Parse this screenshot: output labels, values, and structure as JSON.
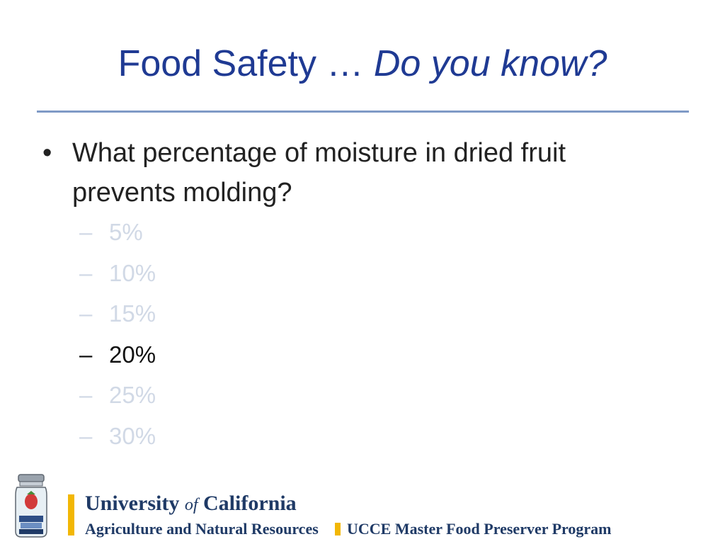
{
  "slide": {
    "title_plain": "Food Safety … ",
    "title_italic": "Do you know?"
  },
  "question": {
    "bullet": "•",
    "text": "What percentage of moisture in dried fruit prevents molding?"
  },
  "options": [
    {
      "dash": "–",
      "label": "5%"
    },
    {
      "dash": "–",
      "label": "10%"
    },
    {
      "dash": "–",
      "label": "15%"
    },
    {
      "dash": "–",
      "label": "20%"
    },
    {
      "dash": "–",
      "label": "25%"
    },
    {
      "dash": "–",
      "label": "30%"
    }
  ],
  "footer": {
    "university_part1": "University ",
    "university_of": "of",
    "university_part2": " California",
    "division": "Agriculture and Natural Resources",
    "program": "UCCE Master Food Preserver Program"
  },
  "colors": {
    "title": "#1f3a93",
    "rule": "#7f9ac6",
    "dim_option": "#d1d9e6",
    "correct_option": "#111111",
    "uc_gold": "#f2b705",
    "uc_blue": "#1f3a66"
  }
}
